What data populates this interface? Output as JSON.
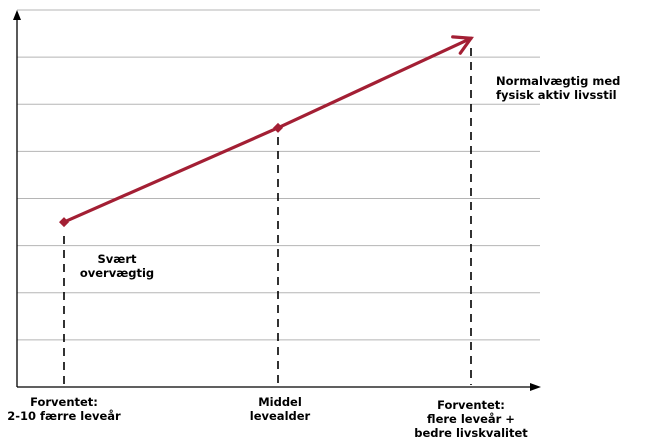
{
  "chart_data": {
    "type": "line",
    "title": "",
    "xlabel": "",
    "ylabel": "",
    "categories": [
      "Forventet:\n2-10 færre leveår",
      "Middel\nlevealder",
      "Forventet:\nflere leveår +\nbedre livskvalitet"
    ],
    "x": [
      0,
      1,
      2
    ],
    "series": [
      {
        "values": [
          3.5,
          5.5,
          7.4
        ]
      }
    ],
    "ylim": [
      0,
      8
    ],
    "grid": true,
    "annotations": [
      {
        "text": "Svært\novervægtig",
        "near": "start"
      },
      {
        "text": "Normalvægtig med\nfysisk aktiv livsstil",
        "near": "end"
      }
    ],
    "line_color": "#a31f34",
    "grid_color": "#b5b5b5"
  }
}
